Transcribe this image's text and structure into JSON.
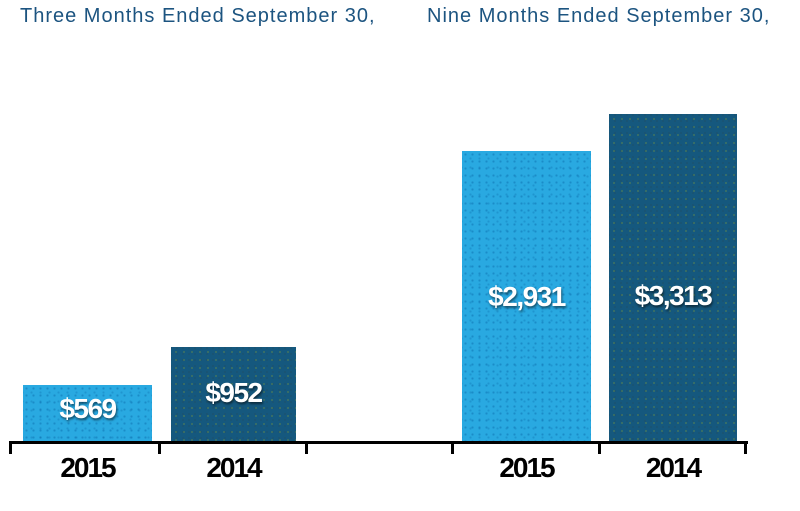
{
  "chart_data": {
    "type": "bar",
    "groups": [
      {
        "title": "Three Months Ended September 30,",
        "categories": [
          "2015",
          "2014"
        ],
        "values": [
          569,
          952
        ],
        "labels": [
          "$569",
          "$952"
        ]
      },
      {
        "title": "Nine Months Ended September 30,",
        "categories": [
          "2015",
          "2014"
        ],
        "values": [
          2931,
          3313
        ],
        "labels": [
          "$2,931",
          "$3,313"
        ]
      }
    ],
    "series_colors": {
      "2015": "#29A9E1",
      "2014": "#15587E"
    },
    "value_label_color": "#FFFFFF",
    "category_label_color": "#000000",
    "title_color": "#1C5480",
    "axis_color": "#000000",
    "grid": false,
    "legend": "none",
    "y_axis": "hidden",
    "baseline_value": 0
  }
}
